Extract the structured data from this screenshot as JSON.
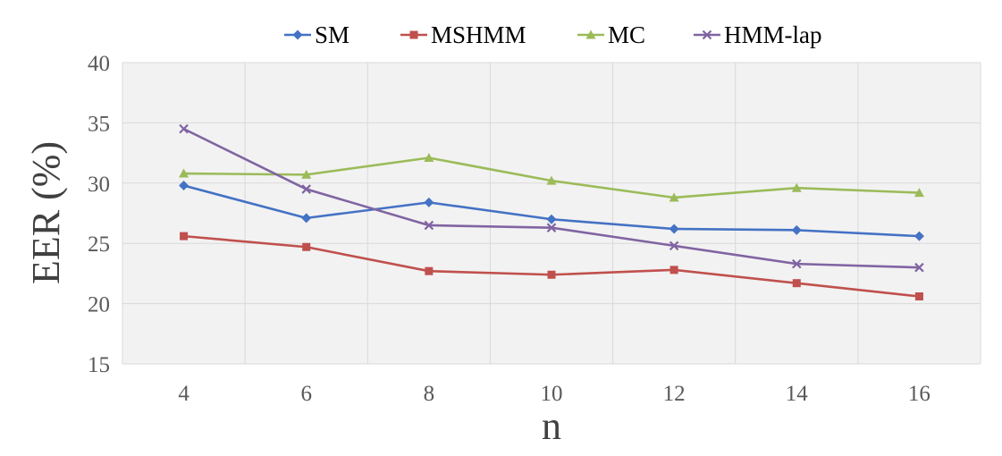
{
  "chart_data": {
    "type": "line",
    "title": "",
    "xlabel": "n",
    "ylabel": "EER (%)",
    "x": [
      4,
      6,
      8,
      10,
      12,
      14,
      16
    ],
    "x_tick_labels": [
      "4",
      "6",
      "8",
      "10",
      "12",
      "14",
      "16"
    ],
    "ylim": [
      15,
      40
    ],
    "y_ticks": [
      15,
      20,
      25,
      30,
      35,
      40
    ],
    "y_tick_labels": [
      "15",
      "20",
      "25",
      "30",
      "35",
      "40"
    ],
    "grid": true,
    "legend_position": "top",
    "series": [
      {
        "name": "SM",
        "color": "#4472C4",
        "marker": "diamond",
        "values": [
          29.8,
          27.1,
          28.4,
          27.0,
          26.2,
          26.1,
          25.6
        ]
      },
      {
        "name": "MSHMM",
        "color": "#C0504D",
        "marker": "square",
        "values": [
          25.6,
          24.7,
          22.7,
          22.4,
          22.8,
          21.7,
          20.6
        ]
      },
      {
        "name": "MC",
        "color": "#9BBB59",
        "marker": "triangle",
        "values": [
          30.8,
          30.7,
          32.1,
          30.2,
          28.8,
          29.6,
          29.2
        ]
      },
      {
        "name": "HMM-lap",
        "color": "#8064A2",
        "marker": "x",
        "values": [
          34.5,
          29.5,
          26.5,
          26.3,
          24.8,
          23.3,
          23.0
        ]
      }
    ],
    "plot_background": "#F2F2F2",
    "grid_color": "#D9D9D9"
  }
}
